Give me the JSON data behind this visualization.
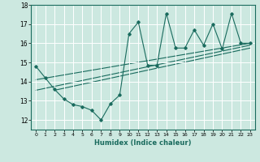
{
  "xlabel": "Humidex (Indice chaleur)",
  "bg_color": "#cce8e0",
  "grid_color": "#ffffff",
  "line_color": "#1a6b5e",
  "xlim": [
    -0.5,
    23.5
  ],
  "ylim": [
    11.5,
    18.0
  ],
  "yticks": [
    12,
    13,
    14,
    15,
    16,
    17,
    18
  ],
  "xticks": [
    0,
    1,
    2,
    3,
    4,
    5,
    6,
    7,
    8,
    9,
    10,
    11,
    12,
    13,
    14,
    15,
    16,
    17,
    18,
    19,
    20,
    21,
    22,
    23
  ],
  "data_y": [
    14.8,
    14.2,
    13.6,
    13.1,
    12.8,
    12.7,
    12.5,
    12.0,
    12.85,
    13.3,
    16.5,
    17.1,
    14.85,
    14.85,
    17.55,
    15.75,
    15.75,
    16.7,
    15.9,
    17.0,
    15.7,
    17.55,
    16.0,
    16.0
  ],
  "trend1_x": [
    0,
    23
  ],
  "trend1_y": [
    13.55,
    15.9
  ],
  "trend2_x": [
    0,
    23
  ],
  "trend2_y": [
    14.1,
    16.0
  ],
  "trend3_x": [
    2,
    23
  ],
  "trend3_y": [
    13.55,
    15.75
  ]
}
